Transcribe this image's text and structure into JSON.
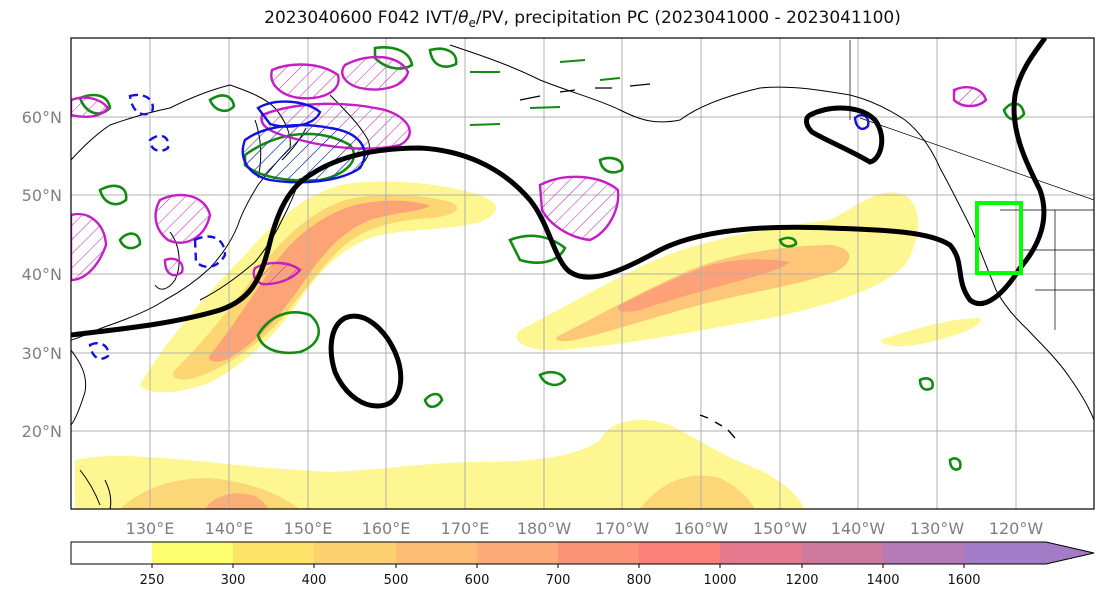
{
  "title": {
    "prefix": "2023040600 F042 IVT/",
    "theta": "θ",
    "theta_sub": "e",
    "suffix": "/PV, precipitation PC (2023041000 - 2023041100)"
  },
  "map": {
    "lat_labels": [
      "60°N",
      "50°N",
      "40°N",
      "30°N",
      "20°N"
    ],
    "lon_labels": [
      "130°E",
      "140°E",
      "150°E",
      "160°E",
      "170°E",
      "180°W",
      "170°W",
      "160°W",
      "150°W",
      "140°W",
      "130°W",
      "120°W"
    ],
    "colors": {
      "ocean": "#ffffff",
      "coast": "#000000",
      "grid": "#b0b0b0",
      "jet_contour": "#000000",
      "precip_contour": "#138a13",
      "pv_positive": "#c41fc4",
      "pv_negative": "#1212e0",
      "target_box": "#00ff00"
    }
  },
  "colorbar": {
    "ticks": [
      "250",
      "300",
      "400",
      "500",
      "600",
      "700",
      "800",
      "1000",
      "1200",
      "1400",
      "1600"
    ],
    "colors": [
      "#ffffff",
      "#fefe70",
      "#fde36a",
      "#fdd070",
      "#fdbd74",
      "#fdab78",
      "#fc9378",
      "#fc807a",
      "#e57a8e",
      "#cf7a9d",
      "#b57bb6",
      "#a37bc6"
    ]
  }
}
